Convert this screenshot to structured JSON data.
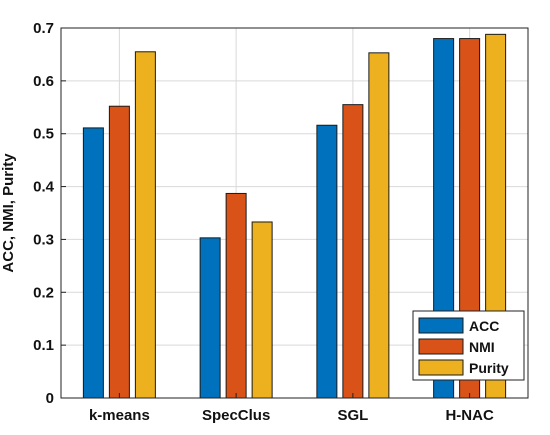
{
  "chart_data": {
    "type": "bar",
    "title": "",
    "xlabel": "",
    "ylabel": "ACC, NMI, Purity",
    "ylim": [
      0,
      0.7
    ],
    "yticks": [
      "0",
      "0.1",
      "0.2",
      "0.3",
      "0.4",
      "0.5",
      "0.6",
      "0.7"
    ],
    "categories": [
      "k-means",
      "SpecClus",
      "SGL",
      "H-NAC"
    ],
    "series": [
      {
        "name": "ACC",
        "color": "#0072BD",
        "values": [
          0.511,
          0.303,
          0.516,
          0.68
        ]
      },
      {
        "name": "NMI",
        "color": "#D95319",
        "values": [
          0.552,
          0.387,
          0.555,
          0.68
        ]
      },
      {
        "name": "Purity",
        "color": "#EDB120",
        "values": [
          0.655,
          0.333,
          0.653,
          0.688
        ]
      }
    ],
    "grid": true,
    "legend_position": "bottom-right"
  }
}
